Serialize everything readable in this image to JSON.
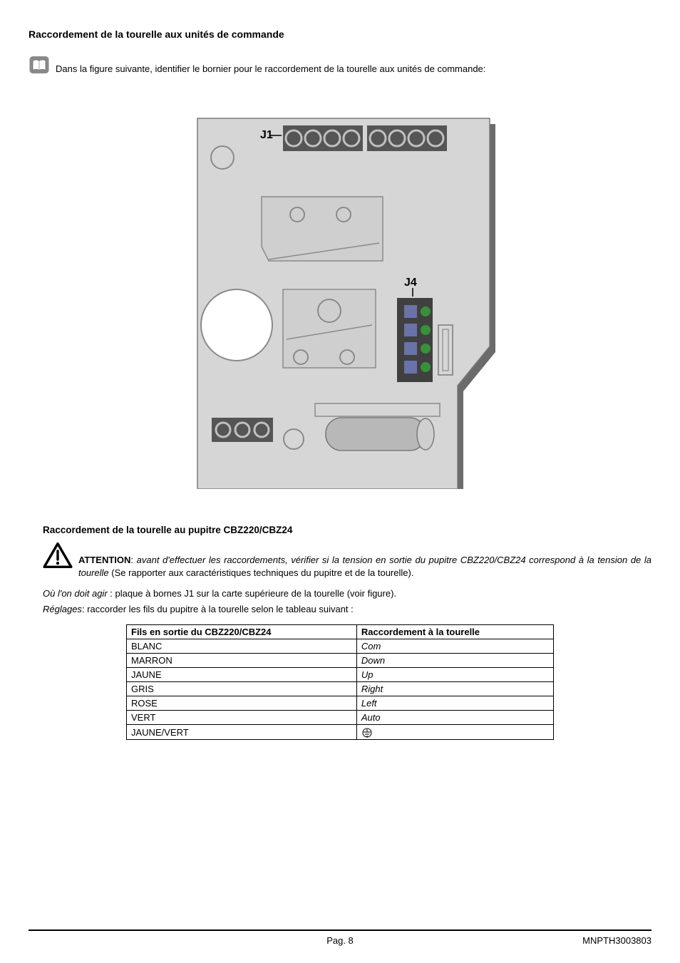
{
  "heading_main": "Raccordement de la tourelle aux unités de commande",
  "intro": "Dans la figure suivante, identifier le bornier pour le raccordement de la tourelle aux unités de commande:",
  "diagram": {
    "label_j1": "J1",
    "label_j4": "J4",
    "colors": {
      "board_fill": "#d6d6d6",
      "board_stroke": "#7a7a7a",
      "shadow": "#9e9e9e",
      "shadow_dark": "#6b6b6b",
      "terminal_body": "#555555",
      "terminal_hole": "#c0c0c0",
      "hole_stroke": "#6f6f6f",
      "panel_fill": "#cfcfcf",
      "j4_body": "#404040",
      "j4_pad": "#6a73a8",
      "j4_pin": "#3a8f3a",
      "cap_body": "#b8b8b8"
    }
  },
  "heading_sub": "Raccordement de la tourelle au pupitre CBZ220/CBZ24",
  "warning": {
    "label": "ATTENTION",
    "text_italic_1": "avant d'effectuer les raccordements, vérifier si la tension en sortie du pupitre CBZ220/CBZ24 correspond à la tension de la tourelle",
    "text_plain_2": " (Se rapporter aux caractéristiques techniques du pupitre et de la tourelle)."
  },
  "agir_label": "Où l'on doit agir",
  "agir_text": " : plaque à bornes J1 sur la carte supérieure de la tourelle (voir figure).",
  "reglages_label": "Réglages",
  "reglages_text": ": raccorder les fils du pupitre à la tourelle selon le tableau suivant :",
  "table": {
    "col1": "Fils en sortie du CBZ220/CBZ24",
    "col2": "Raccordement à la tourelle",
    "rows": [
      {
        "wire": "BLANC",
        "conn": "Com"
      },
      {
        "wire": "MARRON",
        "conn": "Down"
      },
      {
        "wire": "JAUNE",
        "conn": "Up"
      },
      {
        "wire": "GRIS",
        "conn": "Right"
      },
      {
        "wire": "ROSE",
        "conn": "Left"
      },
      {
        "wire": "VERT",
        "conn": "Auto"
      },
      {
        "wire": "JAUNE/VERT",
        "conn": "GROUND_SYMBOL"
      }
    ]
  },
  "footer": {
    "page": "Pag. 8",
    "doc": "MNPTH3003803"
  }
}
